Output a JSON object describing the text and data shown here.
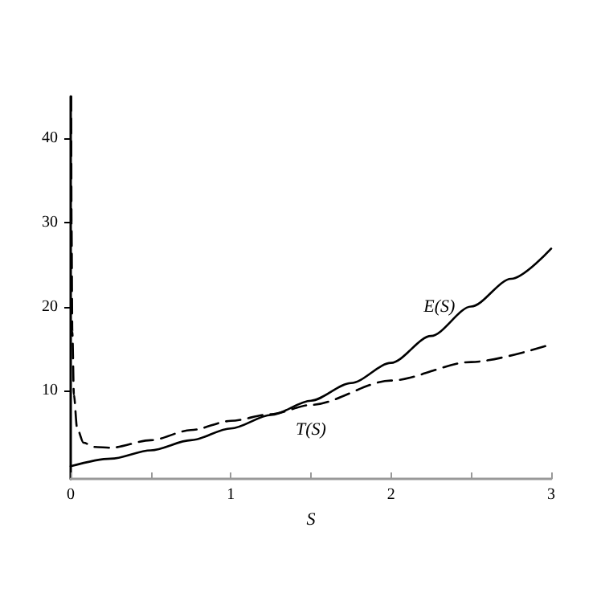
{
  "chart_data": {
    "type": "line",
    "xlabel": "S",
    "xlim": [
      0,
      3
    ],
    "xticks": [
      0,
      {
        "value": 0.5,
        "label": null
      },
      1,
      {
        "value": 1.5,
        "label": null
      },
      2,
      {
        "value": 2.5,
        "label": null
      },
      3
    ],
    "ylim": [
      -0.5,
      45
    ],
    "yticks": [
      10,
      20,
      30,
      40
    ],
    "grid": false,
    "legend": false,
    "marker": "none",
    "series": [
      {
        "name": "E(S)",
        "color": "#000000",
        "line_style": "solid",
        "x": [
          0,
          0.25,
          0.5,
          0.75,
          1,
          1.25,
          1.5,
          1.75,
          2,
          2.25,
          2.5,
          2.75,
          3
        ],
        "values": [
          1.0,
          1.9,
          2.9,
          4.1,
          5.5,
          7.1,
          8.8,
          10.9,
          13.3,
          16.5,
          20.0,
          23.3,
          26.9
        ]
      },
      {
        "name": "T(S)",
        "color": "#000000",
        "line_style": "dashed",
        "x": [
          0.003,
          0.005,
          0.01,
          0.02,
          0.04,
          0.08,
          0.15,
          0.25,
          0.5,
          0.75,
          1,
          1.25,
          1.5,
          2,
          2.5,
          3
        ],
        "values": [
          45,
          30,
          17,
          9.5,
          5.5,
          3.8,
          3.3,
          3.2,
          4.1,
          5.3,
          6.4,
          7.2,
          8.3,
          11.2,
          13.4,
          15.5
        ]
      }
    ]
  }
}
